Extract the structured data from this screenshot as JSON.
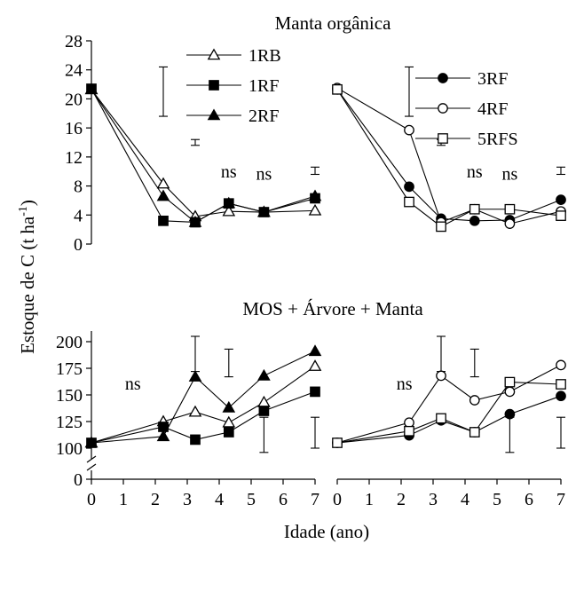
{
  "figure": {
    "ylabel_main": "Estoque de C (t ha",
    "ylabel_sup": "-1",
    "ylabel_close": ")",
    "xlabel": "Idade (ano)"
  },
  "legend": {
    "left": [
      {
        "name": "1RB",
        "marker": "triangle-open"
      },
      {
        "name": "1RF",
        "marker": "square-filled"
      },
      {
        "name": "2RF",
        "marker": "triangle-filled"
      }
    ],
    "right": [
      {
        "name": "3RF",
        "marker": "circle-filled"
      },
      {
        "name": "4RF",
        "marker": "circle-open"
      },
      {
        "name": "5RFS",
        "marker": "square-open"
      }
    ]
  },
  "chart_data": [
    {
      "type": "line",
      "title": "Manta orgânica",
      "panel": "top-left",
      "xlim": [
        0,
        7
      ],
      "ylim": [
        0,
        28
      ],
      "yticks": [
        0,
        4,
        8,
        12,
        16,
        20,
        24,
        28
      ],
      "x": [
        0,
        2.25,
        3.25,
        4.3,
        5.4,
        7
      ],
      "series": [
        {
          "name": "1RB",
          "marker": "triangle-open",
          "values": [
            21.3,
            8.3,
            3.8,
            4.5,
            4.4,
            4.6
          ]
        },
        {
          "name": "1RF",
          "marker": "square-filled",
          "values": [
            21.4,
            3.2,
            3.0,
            5.6,
            4.4,
            6.3
          ]
        },
        {
          "name": "2RF",
          "marker": "triangle-filled",
          "values": [
            21.3,
            6.6,
            3.0,
            5.6,
            4.4,
            6.6
          ]
        }
      ],
      "error_bars": [
        {
          "x": 2.25,
          "low": 17.6,
          "high": 24.4
        },
        {
          "x": 3.25,
          "low": 13.6,
          "high": 14.4
        },
        {
          "x": 7,
          "low": 9.6,
          "high": 10.6
        }
      ],
      "annotations": [
        {
          "text": "ns",
          "x": 4.3,
          "y": 9.9
        },
        {
          "text": "ns",
          "x": 5.4,
          "y": 9.6
        }
      ]
    },
    {
      "type": "line",
      "panel": "top-right",
      "xlim": [
        0,
        7
      ],
      "ylim": [
        0,
        28
      ],
      "x": [
        0,
        2.25,
        3.25,
        4.3,
        5.4,
        7
      ],
      "series": [
        {
          "name": "3RF",
          "marker": "circle-filled",
          "values": [
            21.3,
            7.9,
            3.5,
            3.2,
            3.3,
            6.1
          ]
        },
        {
          "name": "4RF",
          "marker": "circle-open",
          "values": [
            21.5,
            15.7,
            3.0,
            4.8,
            2.8,
            4.5
          ]
        },
        {
          "name": "5RFS",
          "marker": "square-open",
          "values": [
            21.3,
            5.8,
            2.4,
            4.8,
            4.8,
            3.9
          ]
        }
      ],
      "error_bars": [
        {
          "x": 2.25,
          "low": 17.6,
          "high": 24.4
        },
        {
          "x": 3.25,
          "low": 13.6,
          "high": 14.4
        },
        {
          "x": 7,
          "low": 9.6,
          "high": 10.6
        }
      ],
      "annotations": [
        {
          "text": "ns",
          "x": 4.3,
          "y": 9.9
        },
        {
          "text": "ns",
          "x": 5.4,
          "y": 9.6
        }
      ]
    },
    {
      "type": "line",
      "title": "MOS + Árvore + Manta",
      "panel": "bottom-left",
      "xlim": [
        0,
        7
      ],
      "ylim": [
        100,
        210
      ],
      "axis_break": true,
      "yticks": [
        100,
        125,
        150,
        175,
        200
      ],
      "ytick_break_label": "0",
      "xticks": [
        0,
        1,
        2,
        3,
        4,
        5,
        6,
        7
      ],
      "x": [
        0,
        2.25,
        3.25,
        4.3,
        5.4,
        7
      ],
      "series": [
        {
          "name": "1RB",
          "marker": "triangle-open",
          "values": [
            105,
            125,
            134,
            124,
            143,
            177
          ]
        },
        {
          "name": "1RF",
          "marker": "square-filled",
          "values": [
            105,
            120,
            108,
            115,
            135,
            153
          ]
        },
        {
          "name": "2RF",
          "marker": "triangle-filled",
          "values": [
            105,
            111,
            167,
            138,
            168,
            191
          ]
        }
      ],
      "error_bars": [
        {
          "x": 3.25,
          "low": 172,
          "high": 205
        },
        {
          "x": 4.3,
          "low": 167,
          "high": 193
        },
        {
          "x": 5.4,
          "low": 96,
          "high": 129
        },
        {
          "x": 7,
          "low": 100,
          "high": 129
        }
      ],
      "annotations": [
        {
          "text": "ns",
          "x": 1.3,
          "y": 160
        }
      ]
    },
    {
      "type": "line",
      "panel": "bottom-right",
      "xlim": [
        0,
        7
      ],
      "ylim": [
        100,
        210
      ],
      "xticks": [
        0,
        1,
        2,
        3,
        4,
        5,
        6,
        7
      ],
      "x": [
        0,
        2.25,
        3.25,
        4.3,
        5.4,
        7
      ],
      "series": [
        {
          "name": "3RF",
          "marker": "circle-filled",
          "values": [
            105,
            112,
            126,
            115,
            132,
            149
          ]
        },
        {
          "name": "4RF",
          "marker": "circle-open",
          "values": [
            105,
            124,
            168,
            145,
            153,
            178
          ]
        },
        {
          "name": "5RFS",
          "marker": "square-open",
          "values": [
            105,
            116,
            128,
            115,
            162,
            160
          ]
        }
      ],
      "error_bars": [
        {
          "x": 3.25,
          "low": 172,
          "high": 205
        },
        {
          "x": 4.3,
          "low": 167,
          "high": 193
        },
        {
          "x": 5.4,
          "low": 96,
          "high": 129
        },
        {
          "x": 7,
          "low": 100,
          "high": 129
        }
      ],
      "annotations": [
        {
          "text": "ns",
          "x": 2.1,
          "y": 160
        }
      ]
    }
  ]
}
